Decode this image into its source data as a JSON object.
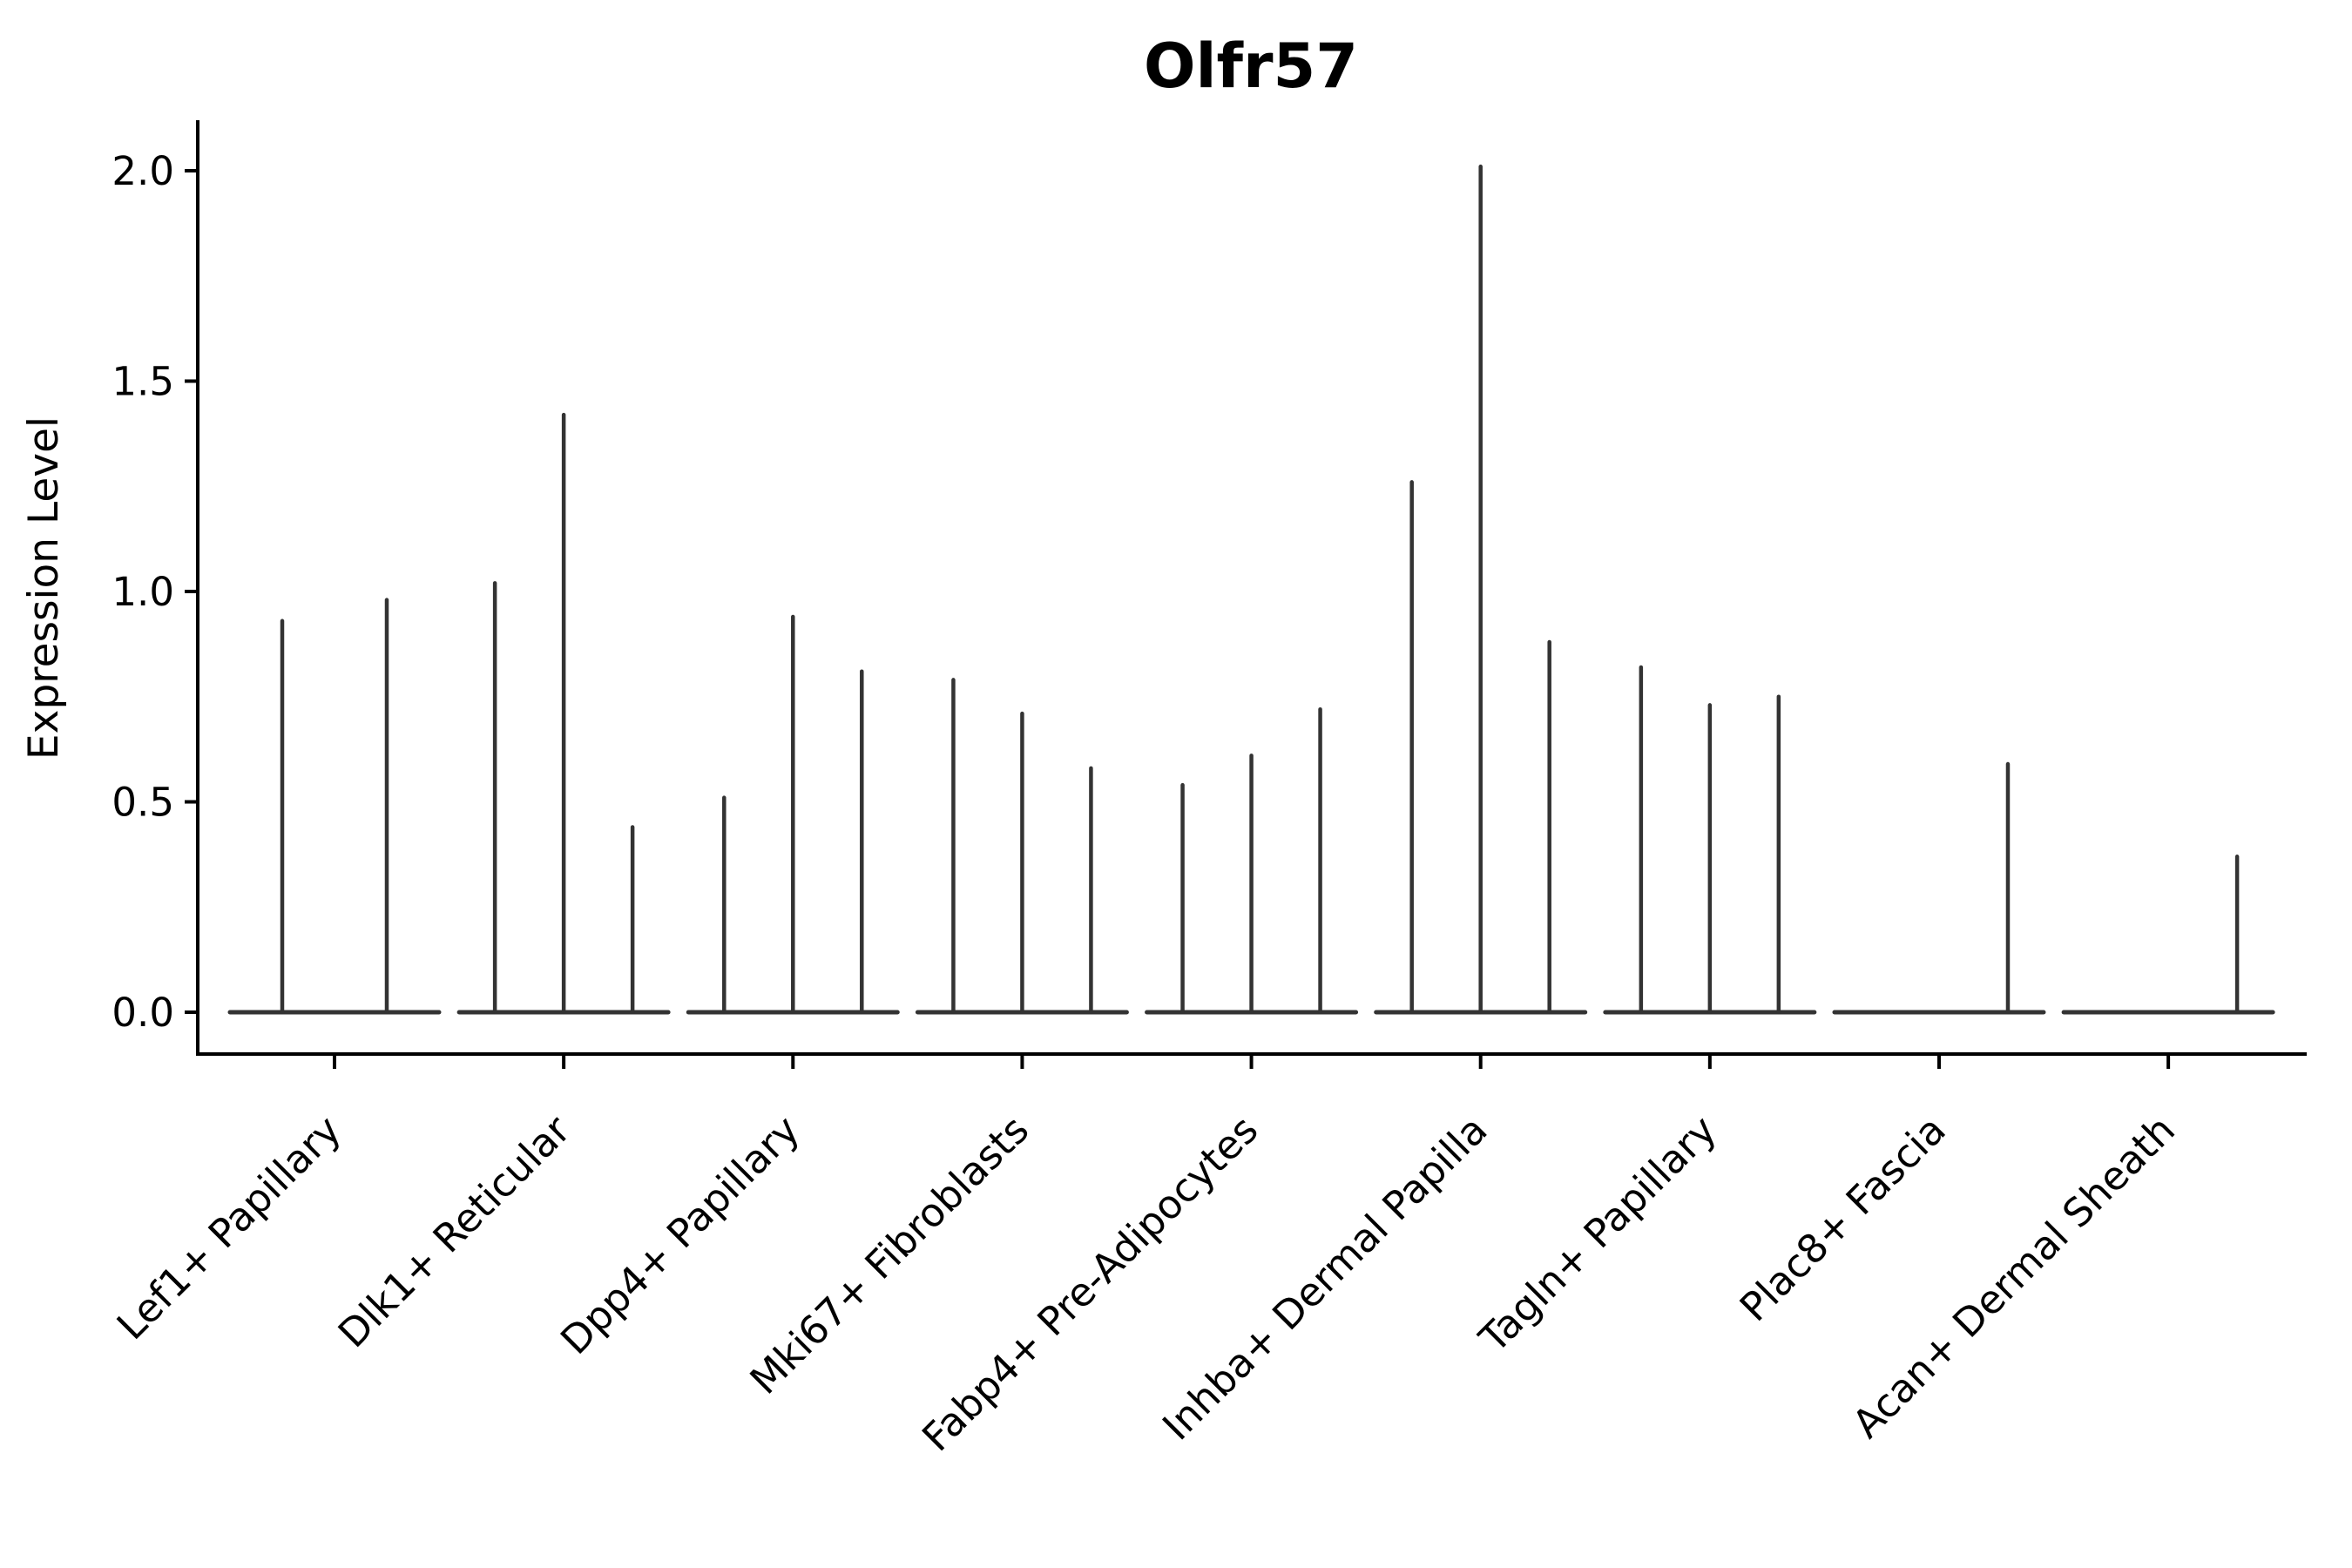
{
  "chart_data": {
    "type": "violin",
    "title": "Olfr57",
    "xlabel": "",
    "ylabel": "Expression Level",
    "grid": false,
    "legend": null,
    "ylim": [
      -0.097,
      2.115
    ],
    "ytick_values": [
      0.0,
      0.5,
      1.0,
      1.5,
      2.0
    ],
    "ytick_labels": [
      "0.0",
      "0.5",
      "1.0",
      "1.5",
      "2.0"
    ],
    "categories": [
      "Lef1+ Papillary",
      "Dlk1+ Reticular",
      "Dpp4+ Papillary",
      "Mki67+ Fibroblasts",
      "Fabp4+ Pre-Adipocytes",
      "Inhba+ Dermal Papilla",
      "Tagln+ Papillary",
      "Plac8+ Fascia",
      "Acan+ Dermal Sheath"
    ],
    "groups": [
      {
        "category": "Lef1+ Papillary",
        "violin_max_values": [
          0.93,
          0.98
        ]
      },
      {
        "category": "Dlk1+ Reticular",
        "violin_max_values": [
          1.02,
          1.42,
          0.44
        ]
      },
      {
        "category": "Dpp4+ Papillary",
        "violin_max_values": [
          0.51,
          0.94,
          0.81
        ]
      },
      {
        "category": "Mki67+ Fibroblasts",
        "violin_max_values": [
          0.79,
          0.71,
          0.58
        ]
      },
      {
        "category": "Fabp4+ Pre-Adipocytes",
        "violin_max_values": [
          0.54,
          0.61,
          0.72
        ]
      },
      {
        "category": "Inhba+ Dermal Papilla",
        "violin_max_values": [
          1.26,
          2.01,
          0.88
        ]
      },
      {
        "category": "Tagln+ Papillary",
        "violin_max_values": [
          0.82,
          0.73,
          0.75
        ]
      },
      {
        "category": "Plac8+ Fascia",
        "violin_max_values": [
          0.0,
          0.0,
          0.59
        ]
      },
      {
        "category": "Acan+ Dermal Sheath",
        "violin_max_values": [
          0.0,
          0.0,
          0.37
        ]
      }
    ],
    "colors": {
      "violin_line": "#333333",
      "axis": "#000000",
      "text": "#000000",
      "background": "#ffffff"
    }
  }
}
